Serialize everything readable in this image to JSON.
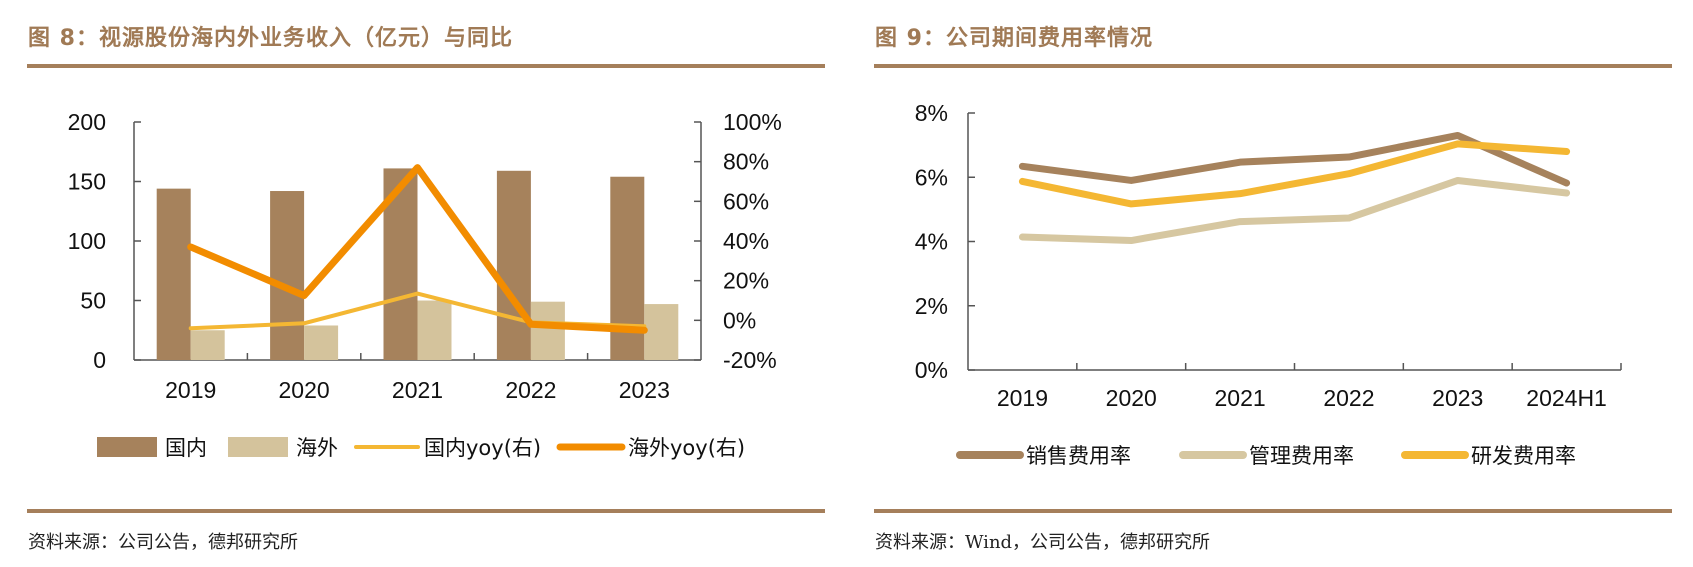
{
  "figures": [
    {
      "title": "图 8：视源股份海内外业务收入（亿元）与同比",
      "source": "资料来源：公司公告，德邦研究所"
    },
    {
      "title": "图 9：公司期间费用率情况",
      "source": "资料来源：Wind，公司公告，德邦研究所"
    }
  ],
  "colors": {
    "title": "#a07a55",
    "rule": "#a57f5b",
    "domestic_bar": "#a6825c",
    "overseas_bar": "#d4c39c",
    "domestic_yoy": "#f4b733",
    "overseas_yoy": "#f28c00",
    "sales_rate": "#a6825c",
    "admin_rate": "#d6c7a1",
    "rd_rate": "#f4b733"
  },
  "chart_data": [
    {
      "type": "bar",
      "title": "视源股份海内外业务收入（亿元）与同比",
      "categories": [
        "2019",
        "2020",
        "2021",
        "2022",
        "2023"
      ],
      "series": [
        {
          "name": "国内",
          "kind": "bar",
          "axis": "left",
          "values": [
            144,
            142,
            161,
            159,
            154
          ]
        },
        {
          "name": "海外",
          "kind": "bar",
          "axis": "left",
          "values": [
            25,
            29,
            50,
            49,
            47
          ]
        },
        {
          "name": "国内yoy(右)",
          "kind": "line",
          "axis": "right",
          "values": [
            -4,
            -1.5,
            13.5,
            -1,
            -3
          ]
        },
        {
          "name": "海外yoy(右)",
          "kind": "line",
          "axis": "right",
          "values": [
            37,
            12.5,
            77,
            -2,
            -5
          ]
        }
      ],
      "ylim_left": [
        0,
        200
      ],
      "yticks_left": [
        "0",
        "50",
        "100",
        "150",
        "200"
      ],
      "ylim_right": [
        -20,
        100
      ],
      "yticks_right": [
        "-20%",
        "0%",
        "20%",
        "40%",
        "60%",
        "80%",
        "100%"
      ],
      "legend_position": "bottom",
      "grid": false
    },
    {
      "type": "line",
      "title": "公司期间费用率情况",
      "categories": [
        "2019",
        "2020",
        "2021",
        "2022",
        "2023",
        "2024H1"
      ],
      "series": [
        {
          "name": "销售费用率",
          "values": [
            6.34,
            5.9,
            6.47,
            6.63,
            7.3,
            5.82
          ]
        },
        {
          "name": "管理费用率",
          "values": [
            4.14,
            4.03,
            4.62,
            4.73,
            5.9,
            5.51
          ]
        },
        {
          "name": "研发费用率",
          "values": [
            5.87,
            5.17,
            5.49,
            6.11,
            7.04,
            6.8
          ]
        }
      ],
      "ylim": [
        0,
        8
      ],
      "yticks": [
        "0%",
        "2%",
        "4%",
        "6%",
        "8%"
      ],
      "legend_position": "bottom",
      "grid": false
    }
  ]
}
